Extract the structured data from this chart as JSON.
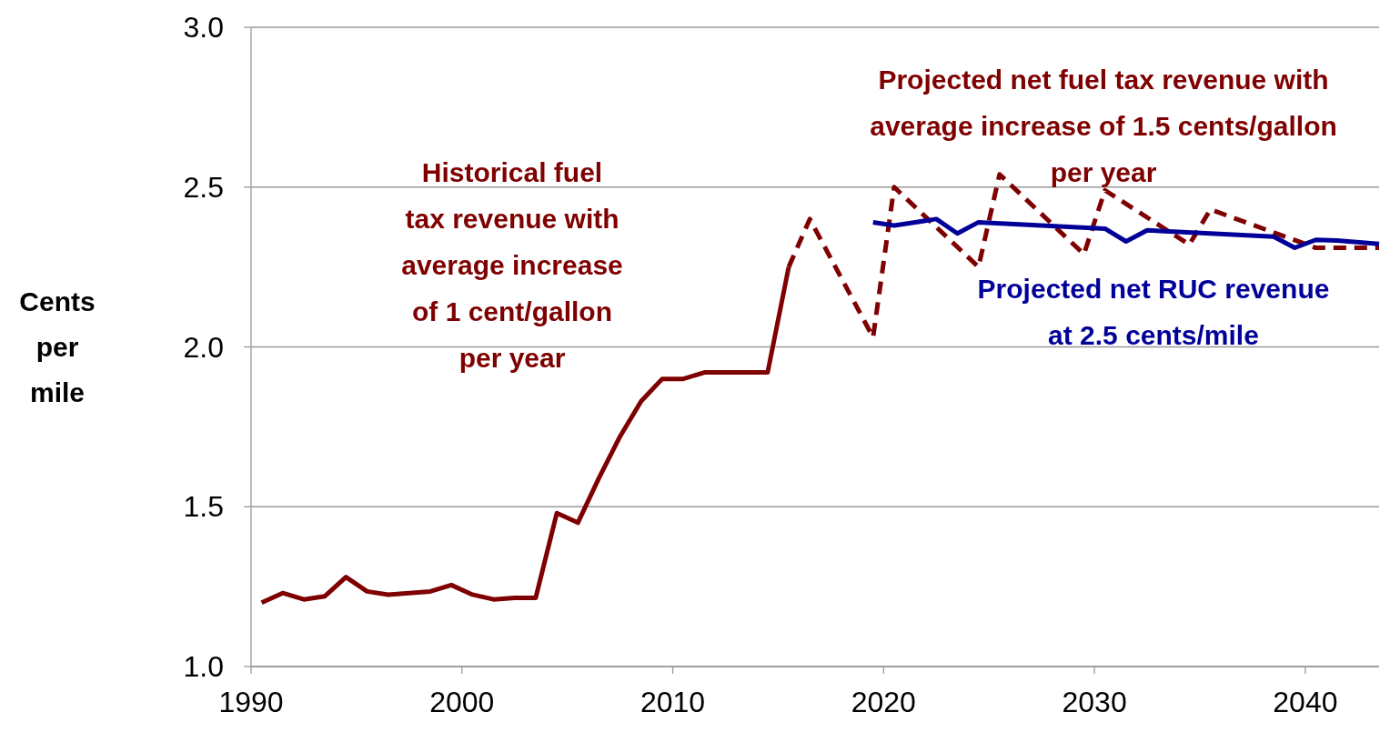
{
  "chart_data": {
    "type": "line",
    "ylabel": "Cents per mile",
    "xlim": [
      1990,
      2043.5
    ],
    "xticks": [
      1990,
      2000,
      2010,
      2020,
      2030,
      2040
    ],
    "ylim": [
      1,
      3
    ],
    "yticks": [
      {
        "value": 1,
        "label": "1.0"
      },
      {
        "value": 1.5,
        "label": "1.5"
      },
      {
        "value": 2,
        "label": "2.0"
      },
      {
        "value": 2.5,
        "label": "2.5"
      },
      {
        "value": 3,
        "label": "3.0"
      }
    ],
    "grid": "y",
    "marker": "none",
    "series": [
      {
        "name": "Historical fuel tax revenue with average increase of 1 cent/gallon per year",
        "color": "#7f0000",
        "line_style": "solid",
        "x": [
          1990.5,
          1991.5,
          1992.5,
          1993.5,
          1994.5,
          1995.5,
          1996.5,
          1997.5,
          1998.5,
          1999.5,
          2000.5,
          2001.5,
          2002.5,
          2003.5,
          2004.5,
          2005.5,
          2006.5,
          2007.5,
          2008.5,
          2009.5,
          2010.5,
          2011.5,
          2012.5,
          2013.5,
          2014.5,
          2015.5
        ],
        "values": [
          1.2,
          1.23,
          1.21,
          1.22,
          1.28,
          1.235,
          1.225,
          1.23,
          1.235,
          1.255,
          1.225,
          1.21,
          1.215,
          1.215,
          1.48,
          1.45,
          1.59,
          1.72,
          1.83,
          1.9,
          1.9,
          1.92,
          1.92,
          1.92,
          1.92,
          2.25
        ]
      },
      {
        "name": "Projected net fuel tax revenue with average increase of 1.5 cents/gallon per year",
        "color": "#7f0000",
        "line_style": "dashed",
        "x": [
          2015.5,
          2016.5,
          2019.5,
          2020.5,
          2024.5,
          2025.5,
          2029.5,
          2030.5,
          2034.5,
          2035.5,
          2040.5,
          2043.5
        ],
        "values": [
          2.25,
          2.4,
          2.03,
          2.5,
          2.25,
          2.54,
          2.29,
          2.49,
          2.32,
          2.43,
          2.31,
          2.31
        ]
      },
      {
        "name": "Projected net RUC revenue at 2.5 cents/mile",
        "color": "#000099",
        "line_style": "solid",
        "x": [
          2019.5,
          2020.5,
          2021.5,
          2022.5,
          2023.5,
          2024.5,
          2030.5,
          2031.5,
          2032.5,
          2038.5,
          2039.5,
          2040.5,
          2041.5,
          2043.5
        ],
        "values": [
          2.39,
          2.38,
          2.39,
          2.4,
          2.355,
          2.39,
          2.37,
          2.33,
          2.365,
          2.345,
          2.31,
          2.335,
          2.333,
          2.322
        ]
      }
    ]
  }
}
